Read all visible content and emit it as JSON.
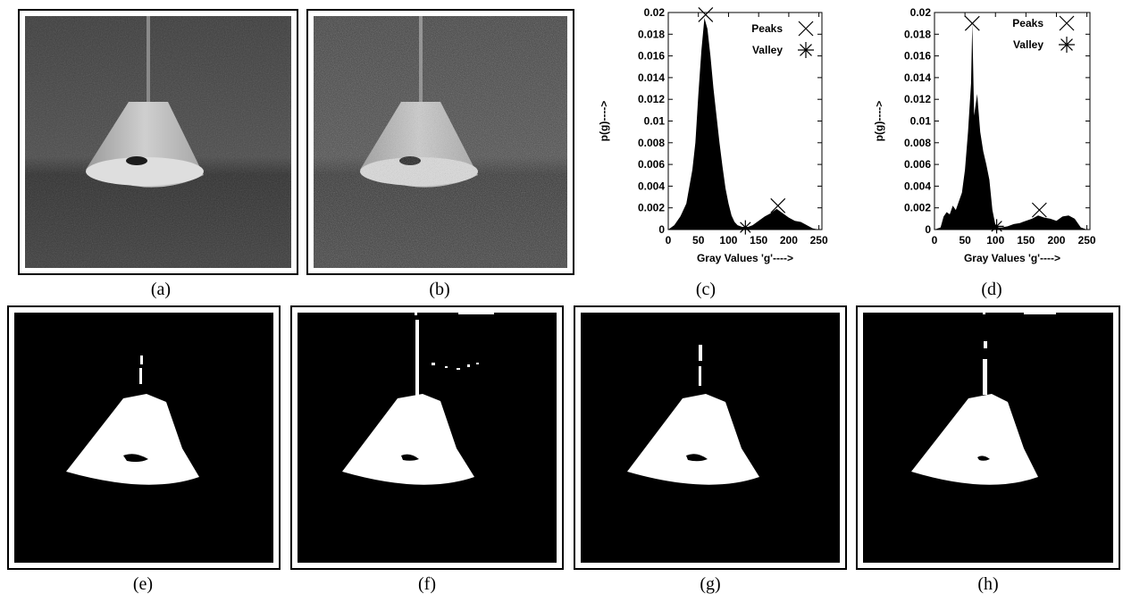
{
  "captions": {
    "a": "(a)",
    "b": "(b)",
    "c": "(c)",
    "d": "(d)",
    "e": "(e)",
    "f": "(f)",
    "g": "(g)",
    "h": "(h)"
  },
  "chart_data": [
    {
      "type": "bar",
      "panel": "(c)",
      "title": "",
      "xlabel": "Gray Values 'g'---->",
      "ylabel": "p(g)---->",
      "xlim": [
        0,
        255
      ],
      "ylim": [
        0,
        0.02
      ],
      "xticks": [
        "0",
        "50",
        "100",
        "150",
        "200",
        "250"
      ],
      "yticks": [
        "0",
        "0.002",
        "0.004",
        "0.006",
        "0.008",
        "0.01",
        "0.012",
        "0.014",
        "0.016",
        "0.018",
        "0.02"
      ],
      "legend": {
        "position": "top-right",
        "entries": [
          "Peaks",
          "Valley"
        ]
      },
      "histogram": {
        "x": [
          0,
          10,
          20,
          30,
          40,
          45,
          50,
          55,
          60,
          65,
          70,
          75,
          80,
          85,
          90,
          95,
          100,
          105,
          110,
          115,
          120,
          125,
          130,
          140,
          150,
          160,
          170,
          180,
          190,
          200,
          210,
          220,
          230,
          240,
          250
        ],
        "values": [
          0,
          0.0004,
          0.0012,
          0.0024,
          0.0055,
          0.008,
          0.0125,
          0.0165,
          0.0195,
          0.0185,
          0.016,
          0.013,
          0.0105,
          0.008,
          0.0058,
          0.0038,
          0.0024,
          0.0013,
          0.0007,
          0.0004,
          0.0003,
          0.0002,
          0.0002,
          0.0004,
          0.0008,
          0.0012,
          0.0015,
          0.0019,
          0.0015,
          0.0011,
          0.0008,
          0.0007,
          0.0004,
          0.0001,
          0
        ]
      },
      "peaks": [
        {
          "x": 62,
          "y": 0.0198
        },
        {
          "x": 182,
          "y": 0.0022
        }
      ],
      "valley": [
        {
          "x": 128,
          "y": 0.0002
        }
      ]
    },
    {
      "type": "bar",
      "panel": "(d)",
      "title": "",
      "xlabel": "Gray Values 'g'---->",
      "ylabel": "p(g)---->",
      "xlim": [
        0,
        255
      ],
      "ylim": [
        0,
        0.02
      ],
      "xticks": [
        "0",
        "50",
        "100",
        "150",
        "200",
        "250"
      ],
      "yticks": [
        "0",
        "0.002",
        "0.004",
        "0.006",
        "0.008",
        "0.01",
        "0.012",
        "0.014",
        "0.016",
        "0.018",
        "0.02"
      ],
      "legend": {
        "position": "top-right",
        "entries": [
          "Peaks",
          "Valley"
        ]
      },
      "histogram": {
        "x": [
          0,
          10,
          15,
          20,
          25,
          30,
          35,
          40,
          45,
          50,
          55,
          60,
          62,
          65,
          70,
          75,
          80,
          85,
          90,
          95,
          100,
          105,
          110,
          120,
          130,
          140,
          150,
          160,
          170,
          180,
          190,
          200,
          210,
          220,
          230,
          240,
          250
        ],
        "values": [
          0,
          0.0002,
          0.0012,
          0.0016,
          0.0014,
          0.0022,
          0.0018,
          0.0026,
          0.0034,
          0.0055,
          0.009,
          0.0135,
          0.019,
          0.0105,
          0.0125,
          0.009,
          0.0072,
          0.006,
          0.0046,
          0.0018,
          0.0004,
          0.0002,
          0.0002,
          0.0003,
          0.0005,
          0.0006,
          0.0008,
          0.001,
          0.0013,
          0.0011,
          0.001,
          0.0008,
          0.0012,
          0.0013,
          0.001,
          0.0002,
          0
        ]
      },
      "peaks": [
        {
          "x": 62,
          "y": 0.019
        },
        {
          "x": 172,
          "y": 0.0018
        }
      ],
      "valley": [
        {
          "x": 102,
          "y": 0.0003
        }
      ]
    }
  ]
}
